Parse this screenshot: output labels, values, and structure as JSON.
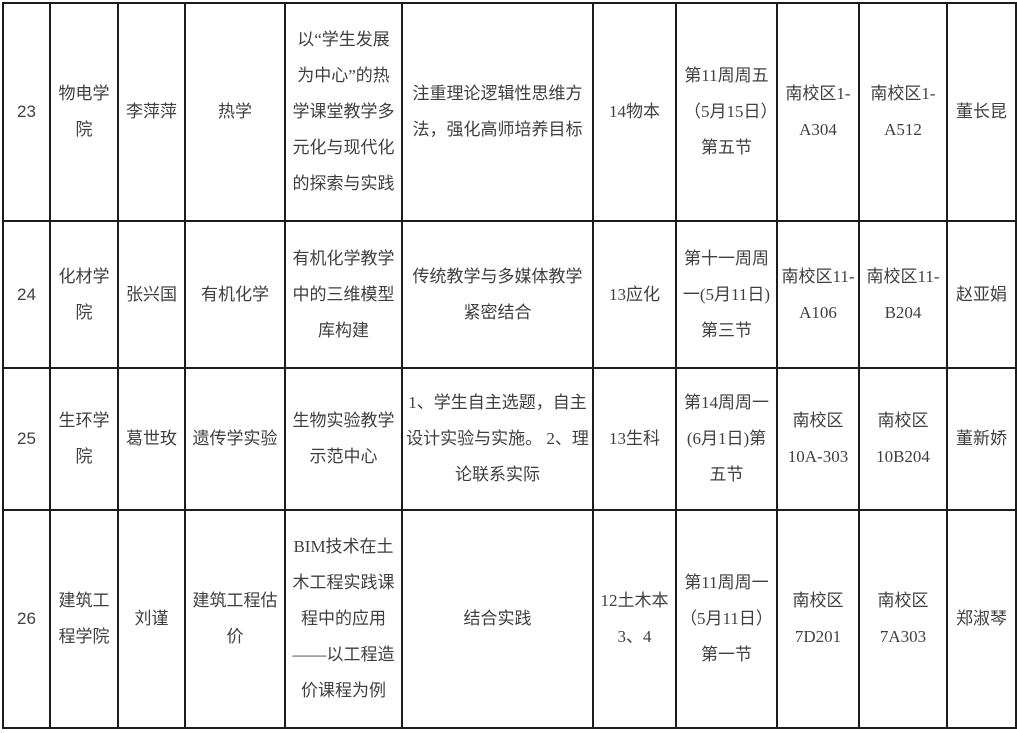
{
  "colors": {
    "border": "#1c1c1c",
    "text": "#3f3f3f",
    "background": "#ffffff"
  },
  "table": {
    "rows": [
      {
        "no": "23",
        "college": "物电学院",
        "teacher": "李萍萍",
        "course": "热学",
        "topic": "以“学生发展为中心”的热学课堂教学多元化与现代化的探索与实践",
        "feature": "注重理论逻辑性思维方法，强化高师培养目标",
        "class": "14物本",
        "time": "第11周周五（5月15日）第五节",
        "room1": "南校区1-A304",
        "room2": "南校区1-A512",
        "person": "董长昆"
      },
      {
        "no": "24",
        "college": "化材学院",
        "teacher": "张兴国",
        "course": "有机化学",
        "topic": "有机化学教学中的三维模型库构建",
        "feature": "传统教学与多媒体教学紧密结合",
        "class": "13应化",
        "time": "第十一周周一(5月11日)第三节",
        "room1": "南校区11-A106",
        "room2": "南校区11-B204",
        "person": "赵亚娟"
      },
      {
        "no": "25",
        "college": "生环学院",
        "teacher": "葛世玫",
        "course": "遗传学实验",
        "topic": "生物实验教学示范中心",
        "feature": "1、学生自主选题，自主设计实验与实施。 2、理论联系实际",
        "class": "13生科",
        "time": "第14周周一(6月1日)第五节",
        "room1": "南校区10A-303",
        "room2": "南校区10B204",
        "person": "董新娇"
      },
      {
        "no": "26",
        "college": "建筑工程学院",
        "teacher": "刘谨",
        "course": "建筑工程估价",
        "topic": "BIM技术在土木工程实践课程中的应用——以工程造价课程为例",
        "feature": "结合实践",
        "class": "12土木本3、4",
        "time": "第11周周一（5月11日）第一节",
        "room1": "南校区7D201",
        "room2": "南校区7A303",
        "person": "郑淑琴"
      }
    ]
  }
}
